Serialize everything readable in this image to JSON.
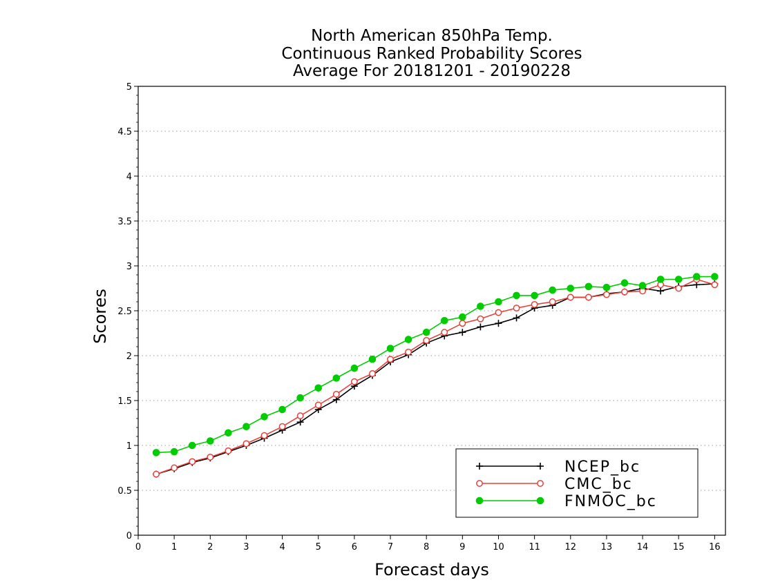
{
  "chart_data": {
    "type": "line",
    "title_lines": [
      "North American 850hPa Temp.",
      "Continuous Ranked Probability Scores",
      "Average For 20181201 - 20190228"
    ],
    "xlabel": "Forecast days",
    "ylabel": "Scores",
    "xlim": [
      0,
      16.3
    ],
    "ylim": [
      0,
      5
    ],
    "x_ticks": [
      0,
      1,
      2,
      3,
      4,
      5,
      6,
      7,
      8,
      9,
      10,
      11,
      12,
      13,
      14,
      15,
      16
    ],
    "y_ticks": [
      0,
      0.5,
      1,
      1.5,
      2,
      2.5,
      3,
      3.5,
      4,
      4.5,
      5
    ],
    "y_tick_labels": [
      "0",
      "0.5",
      "1",
      "1.5",
      "2",
      "2.5",
      "3",
      "3.5",
      "4",
      "4.5",
      "5"
    ],
    "grid": "horizontal dotted",
    "legend_position": "bottom-right",
    "x": [
      0.5,
      1,
      1.5,
      2,
      2.5,
      3,
      3.5,
      4,
      4.5,
      5,
      5.5,
      6,
      6.5,
      7,
      7.5,
      8,
      8.5,
      9,
      9.5,
      10,
      10.5,
      11,
      11.5,
      12,
      12.5,
      13,
      13.5,
      14,
      14.5,
      15,
      15.5,
      16
    ],
    "series": [
      {
        "name": "NCEP_bc",
        "color": "#000000",
        "marker": "plus",
        "values": [
          0.68,
          0.74,
          0.81,
          0.86,
          0.93,
          1.0,
          1.08,
          1.17,
          1.26,
          1.4,
          1.51,
          1.66,
          1.78,
          1.93,
          2.01,
          2.14,
          2.22,
          2.26,
          2.32,
          2.36,
          2.42,
          2.53,
          2.56,
          2.65,
          2.65,
          2.69,
          2.71,
          2.75,
          2.72,
          2.77,
          2.79,
          2.8
        ]
      },
      {
        "name": "CMC_bc",
        "color": "#e8403a",
        "marker": "open-circle",
        "values": [
          0.68,
          0.75,
          0.82,
          0.87,
          0.94,
          1.02,
          1.11,
          1.21,
          1.33,
          1.45,
          1.57,
          1.71,
          1.8,
          1.96,
          2.04,
          2.17,
          2.26,
          2.36,
          2.41,
          2.48,
          2.53,
          2.57,
          2.6,
          2.65,
          2.65,
          2.68,
          2.71,
          2.72,
          2.79,
          2.75,
          2.85,
          2.79
        ]
      },
      {
        "name": "FNMOC_bc",
        "color": "#00cc00",
        "marker": "filled-circle",
        "values": [
          0.92,
          0.93,
          1.0,
          1.05,
          1.14,
          1.21,
          1.32,
          1.4,
          1.53,
          1.64,
          1.75,
          1.86,
          1.96,
          2.08,
          2.18,
          2.26,
          2.39,
          2.43,
          2.55,
          2.6,
          2.67,
          2.67,
          2.73,
          2.75,
          2.77,
          2.76,
          2.81,
          2.78,
          2.85,
          2.85,
          2.88,
          2.88
        ]
      }
    ]
  }
}
